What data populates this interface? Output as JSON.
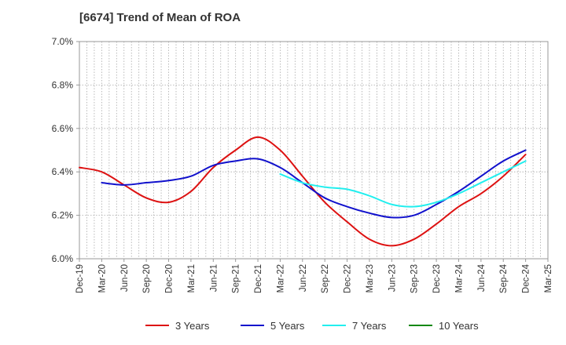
{
  "chart_data": {
    "type": "line",
    "title": "[6674]  Trend of Mean of ROA",
    "xlabel": "",
    "ylabel": "",
    "ylim": [
      6.0,
      7.0
    ],
    "y_ticks": [
      "6.0%",
      "6.2%",
      "6.4%",
      "6.6%",
      "6.8%",
      "7.0%"
    ],
    "y_tick_values": [
      6.0,
      6.2,
      6.4,
      6.6,
      6.8,
      7.0
    ],
    "x": [
      "Dec-19",
      "Mar-20",
      "Jun-20",
      "Sep-20",
      "Dec-20",
      "Mar-21",
      "Jun-21",
      "Sep-21",
      "Dec-21",
      "Mar-22",
      "Jun-22",
      "Sep-22",
      "Dec-22",
      "Mar-23",
      "Jun-23",
      "Sep-23",
      "Dec-23",
      "Mar-24",
      "Jun-24",
      "Sep-24",
      "Dec-24",
      "Mar-25"
    ],
    "minor_per_interval": 3,
    "grid": true,
    "legend_position": "bottom",
    "series": [
      {
        "name": "3 Years",
        "color": "#dd1111",
        "values": [
          6.42,
          6.4,
          6.34,
          6.28,
          6.26,
          6.31,
          6.42,
          6.5,
          6.56,
          6.5,
          6.38,
          6.26,
          6.17,
          6.09,
          6.06,
          6.09,
          6.16,
          6.24,
          6.3,
          6.38,
          6.48,
          null
        ]
      },
      {
        "name": "5 Years",
        "color": "#1111cc",
        "values": [
          null,
          6.35,
          6.34,
          6.35,
          6.36,
          6.38,
          6.43,
          6.45,
          6.46,
          6.42,
          6.35,
          6.28,
          6.24,
          6.21,
          6.19,
          6.2,
          6.25,
          6.31,
          6.38,
          6.45,
          6.5,
          null
        ]
      },
      {
        "name": "7 Years",
        "color": "#22eeee",
        "values": [
          null,
          null,
          null,
          null,
          null,
          null,
          null,
          null,
          null,
          6.39,
          6.35,
          6.33,
          6.32,
          6.29,
          6.25,
          6.24,
          6.26,
          6.3,
          6.35,
          6.4,
          6.45,
          null
        ]
      },
      {
        "name": "10 Years",
        "color": "#118811",
        "values": [
          null,
          null,
          null,
          null,
          null,
          null,
          null,
          null,
          null,
          null,
          null,
          null,
          null,
          null,
          null,
          null,
          null,
          null,
          null,
          null,
          null,
          null
        ]
      }
    ]
  }
}
